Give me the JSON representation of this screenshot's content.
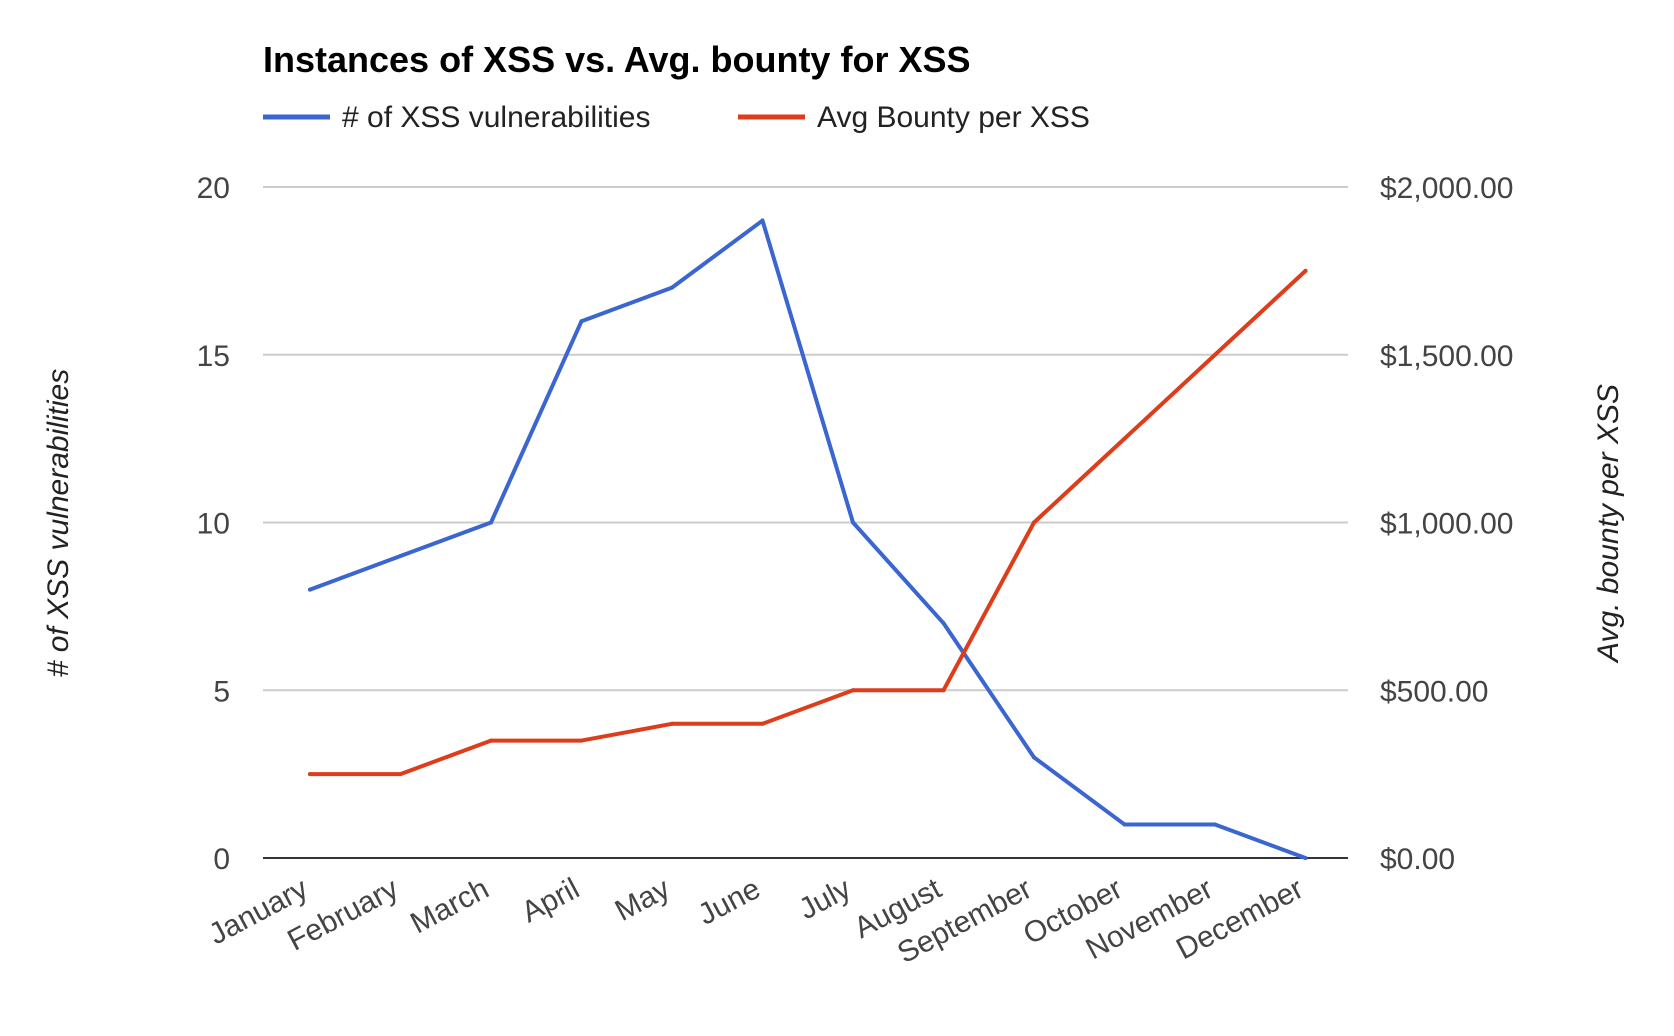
{
  "chart_data": {
    "type": "line",
    "title": "Instances of XSS vs. Avg. bounty for XSS",
    "categories": [
      "January",
      "February",
      "March",
      "April",
      "May",
      "June",
      "July",
      "August",
      "September",
      "October",
      "November",
      "December"
    ],
    "series": [
      {
        "name": "# of XSS vulnerabilities",
        "axis": "left",
        "color": "#3b66d1",
        "values": [
          8,
          9,
          10,
          16,
          17,
          19,
          10,
          7,
          3,
          1,
          1,
          0
        ]
      },
      {
        "name": "Avg Bounty per XSS",
        "axis": "right",
        "color": "#dd3d1b",
        "values": [
          250,
          250,
          350,
          350,
          400,
          400,
          500,
          500,
          1000,
          1250,
          1500,
          1750
        ]
      }
    ],
    "ylabel": "# of XSS vulnerabilities",
    "y2label": "Avg. bounty per XSS",
    "ylim": [
      0,
      20
    ],
    "y2lim": [
      0,
      2000
    ],
    "yticks": [
      "0",
      "5",
      "10",
      "15",
      "20"
    ],
    "y2ticks": [
      "$0.00",
      "$500.00",
      "$1,000.00",
      "$1,500.00",
      "$2,000.00"
    ],
    "legend_position": "top-left",
    "grid": true
  }
}
